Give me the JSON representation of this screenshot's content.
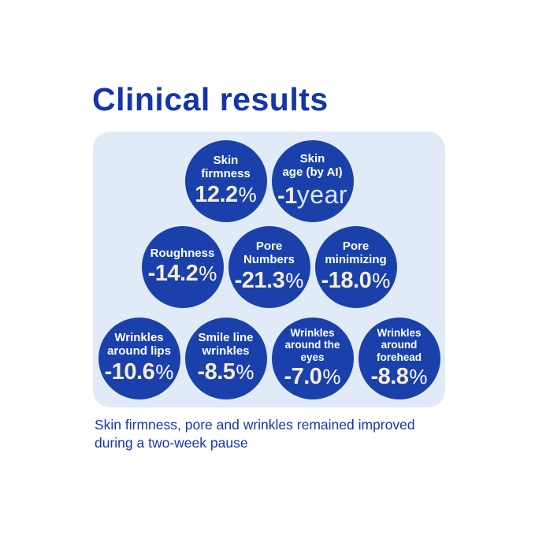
{
  "title": "Clinical results",
  "caption": "Skin firmness, pore and wrinkles remained improved\nduring a two-week pause",
  "colors": {
    "title_blue": "#1535ad",
    "panel_background": "#e0ebf7",
    "circle_blue": "#1a41ab",
    "label_white": "#ffffff",
    "value_cream": "#f5ecd4",
    "year_light_blue": "#d9e6f8",
    "page_background": "#ffffff"
  },
  "rows": [
    {
      "circles": [
        {
          "label": "Skin\nfirmness",
          "value": "12.2",
          "suffix": "%"
        },
        {
          "label": "Skin\nage (by AI)",
          "value": "-1",
          "suffix": "year"
        }
      ]
    },
    {
      "circles": [
        {
          "label": "Roughness",
          "value": "-14.2",
          "suffix": "%"
        },
        {
          "label": "Pore\nNumbers",
          "value": "-21.3",
          "suffix": "%"
        },
        {
          "label": "Pore\nminimizing",
          "value": "-18.0",
          "suffix": "%"
        }
      ]
    },
    {
      "circles": [
        {
          "label": "Wrinkles\naround lips",
          "value": "-10.6",
          "suffix": "%"
        },
        {
          "label": "Smile line\nwrinkles",
          "value": "-8.5",
          "suffix": "%"
        },
        {
          "label": "Wrinkles\naround the\neyes",
          "value": "-7.0",
          "suffix": "%"
        },
        {
          "label": "Wrinkles\naround\nforehead",
          "value": "-8.8",
          "suffix": "%"
        }
      ]
    }
  ],
  "chart_data": {
    "type": "table",
    "title": "Clinical results",
    "categories": [
      "Skin firmness",
      "Skin age (by AI)",
      "Roughness",
      "Pore Numbers",
      "Pore minimizing",
      "Wrinkles around lips",
      "Smile line wrinkles",
      "Wrinkles around the eyes",
      "Wrinkles around forehead"
    ],
    "values": [
      "12.2%",
      "-1 year",
      "-14.2%",
      "-21.3%",
      "-18.0%",
      "-10.6%",
      "-8.5%",
      "-7.0%",
      "-8.8%"
    ],
    "annotation": "Skin firmness, pore and wrinkles remained improved during a two-week pause",
    "layout": "three rows of circular badges: 2 / 3 / 4"
  }
}
